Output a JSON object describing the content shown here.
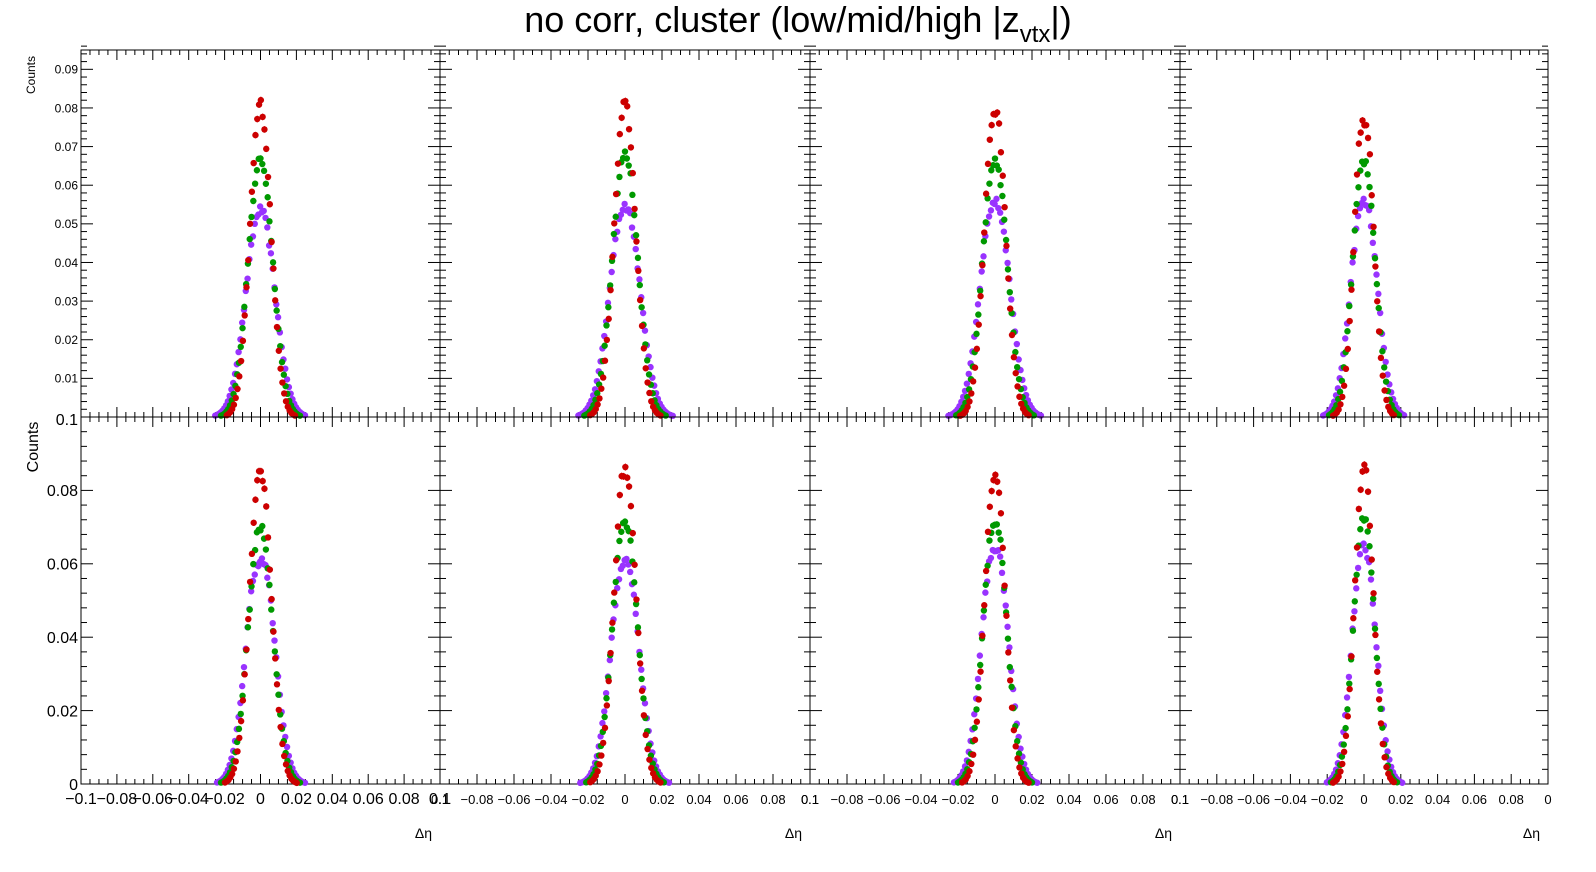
{
  "title": {
    "main": "no corr, cluster  (low/mid/high |z",
    "sub": "vtx",
    "close": "|)"
  },
  "series_colors": {
    "low": "#cc0000",
    "mid": "#009900",
    "high": "#9933ff"
  },
  "axis_text": {
    "xlabel": "Δη",
    "ylabel": "Counts"
  },
  "chart_data": [
    {
      "type": "scatter",
      "row": 0,
      "col": 0,
      "xlabel": "Δη",
      "ylabel": "Counts",
      "xlim": [
        -0.1,
        0.1
      ],
      "ylim": [
        0,
        0.095
      ],
      "x_ticks": [],
      "y_ticks": [
        "0.09",
        "0.08",
        "0.07",
        "0.06",
        "0.05",
        "0.04",
        "0.03",
        "0.02",
        "0.01"
      ],
      "series": [
        {
          "peak": 0.081,
          "valley": 0.08,
          "width": 0.0058,
          "color": "#cc0000"
        },
        {
          "peak": 0.067,
          "valley": 0.066,
          "width": 0.0068,
          "color": "#009900"
        },
        {
          "peak": 0.054,
          "valley": 0.053,
          "width": 0.008,
          "color": "#9933ff"
        }
      ]
    },
    {
      "type": "scatter",
      "row": 0,
      "col": 1,
      "xlabel": "Δη",
      "ylabel": "",
      "xlim": [
        -0.1,
        0.1
      ],
      "ylim": [
        0,
        0.095
      ],
      "x_ticks": [],
      "y_ticks": [],
      "series": [
        {
          "peak": 0.081,
          "valley": 0.08,
          "width": 0.0058,
          "color": "#cc0000"
        },
        {
          "peak": 0.069,
          "valley": 0.067,
          "width": 0.0068,
          "color": "#009900"
        },
        {
          "peak": 0.056,
          "valley": 0.054,
          "width": 0.008,
          "color": "#9933ff"
        }
      ]
    },
    {
      "type": "scatter",
      "row": 0,
      "col": 2,
      "xlabel": "Δη",
      "ylabel": "",
      "xlim": [
        -0.1,
        0.1
      ],
      "ylim": [
        0,
        0.095
      ],
      "x_ticks": [],
      "y_ticks": [],
      "series": [
        {
          "peak": 0.082,
          "valley": 0.078,
          "width": 0.0056,
          "color": "#cc0000"
        },
        {
          "peak": 0.068,
          "valley": 0.066,
          "width": 0.0066,
          "color": "#009900"
        },
        {
          "peak": 0.058,
          "valley": 0.055,
          "width": 0.0078,
          "color": "#9933ff"
        }
      ]
    },
    {
      "type": "scatter",
      "row": 0,
      "col": 3,
      "xlabel": "Δη",
      "ylabel": "",
      "xlim": [
        -0.1,
        0.1
      ],
      "ylim": [
        0,
        0.095
      ],
      "x_ticks": [],
      "y_ticks": [],
      "series": [
        {
          "peak": 0.083,
          "valley": 0.076,
          "width": 0.005,
          "color": "#cc0000"
        },
        {
          "peak": 0.068,
          "valley": 0.065,
          "width": 0.006,
          "color": "#009900"
        },
        {
          "peak": 0.058,
          "valley": 0.055,
          "width": 0.007,
          "color": "#9933ff"
        }
      ]
    },
    {
      "type": "scatter",
      "row": 1,
      "col": 0,
      "xlabel": "Δη",
      "ylabel": "Counts",
      "xlim": [
        -0.1,
        0.1
      ],
      "ylim": [
        0,
        0.1
      ],
      "x_ticks": [
        "−0.1",
        "−0.08",
        "−0.06",
        "−0.04",
        "−0.02",
        "0",
        "0.02",
        "0.04",
        "0.06",
        "0.08",
        "0.1"
      ],
      "y_ticks": [
        "0.1",
        "0.08",
        "0.06",
        "0.04",
        "0.02",
        "0"
      ],
      "series": [
        {
          "peak": 0.086,
          "valley": 0.084,
          "width": 0.006,
          "color": "#cc0000"
        },
        {
          "peak": 0.071,
          "valley": 0.069,
          "width": 0.0068,
          "color": "#009900"
        },
        {
          "peak": 0.066,
          "valley": 0.06,
          "width": 0.0076,
          "color": "#9933ff"
        }
      ]
    },
    {
      "type": "scatter",
      "row": 1,
      "col": 1,
      "xlabel": "Δη",
      "ylabel": "",
      "xlim": [
        -0.1,
        0.1
      ],
      "ylim": [
        0,
        0.1
      ],
      "x_ticks": [
        "0.1",
        "−0.08",
        "−0.06",
        "−0.04",
        "−0.02",
        "0",
        "0.02",
        "0.04",
        "0.06",
        "0.08",
        "0.1"
      ],
      "y_ticks": [],
      "series": [
        {
          "peak": 0.087,
          "valley": 0.085,
          "width": 0.0058,
          "color": "#cc0000"
        },
        {
          "peak": 0.073,
          "valley": 0.07,
          "width": 0.0066,
          "color": "#009900"
        },
        {
          "peak": 0.063,
          "valley": 0.06,
          "width": 0.0074,
          "color": "#9933ff"
        }
      ]
    },
    {
      "type": "scatter",
      "row": 1,
      "col": 2,
      "xlabel": "Δη",
      "ylabel": "",
      "xlim": [
        -0.1,
        0.1
      ],
      "ylim": [
        0,
        0.1
      ],
      "x_ticks": [
        "0.1",
        "−0.08",
        "−0.06",
        "−0.04",
        "−0.02",
        "0",
        "0.02",
        "0.04",
        "0.06",
        "0.08",
        "0.1"
      ],
      "y_ticks": [],
      "series": [
        {
          "peak": 0.087,
          "valley": 0.084,
          "width": 0.0054,
          "color": "#cc0000"
        },
        {
          "peak": 0.074,
          "valley": 0.071,
          "width": 0.0062,
          "color": "#009900"
        },
        {
          "peak": 0.068,
          "valley": 0.063,
          "width": 0.007,
          "color": "#9933ff"
        }
      ]
    },
    {
      "type": "scatter",
      "row": 1,
      "col": 3,
      "xlabel": "Δη",
      "ylabel": "",
      "xlim": [
        -0.1,
        0.1
      ],
      "ylim": [
        0,
        0.1
      ],
      "x_ticks": [
        "0.1",
        "−0.08",
        "−0.06",
        "−0.04",
        "−0.02",
        "0",
        "0.02",
        "0.04",
        "0.06",
        "0.08",
        "0"
      ],
      "y_ticks": [],
      "series": [
        {
          "peak": 0.087,
          "valley": 0.086,
          "width": 0.005,
          "color": "#cc0000"
        },
        {
          "peak": 0.074,
          "valley": 0.072,
          "width": 0.0056,
          "color": "#009900"
        },
        {
          "peak": 0.066,
          "valley": 0.064,
          "width": 0.0064,
          "color": "#9933ff"
        }
      ]
    }
  ]
}
